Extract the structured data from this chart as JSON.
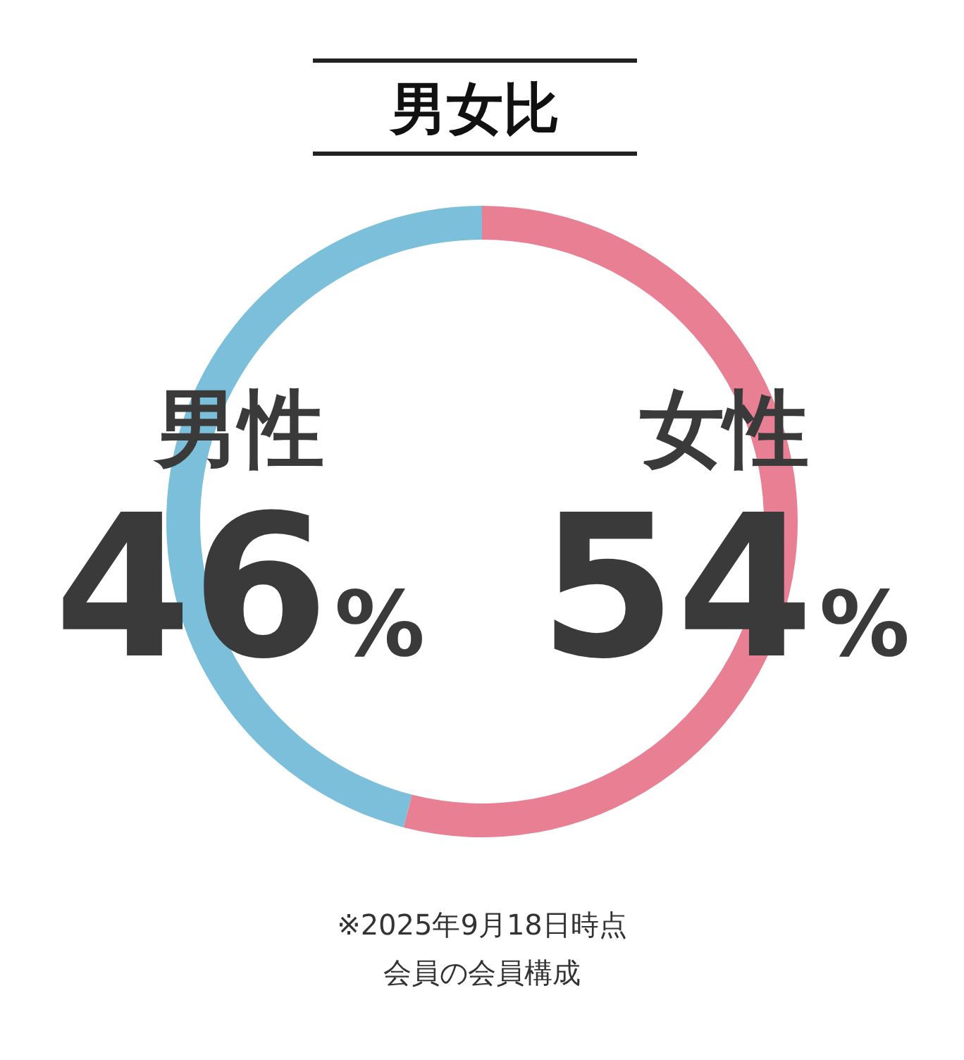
{
  "chart_data": {
    "type": "donut",
    "title": "男女比",
    "categories": [
      "女性",
      "男性"
    ],
    "values": [
      54,
      46
    ],
    "colors": [
      "#e87f92",
      "#7bbfda"
    ],
    "value_labels": [
      "54%",
      "46%"
    ],
    "annotations": [
      "※2025年9月18日時点",
      "会員の会員構成"
    ]
  }
}
